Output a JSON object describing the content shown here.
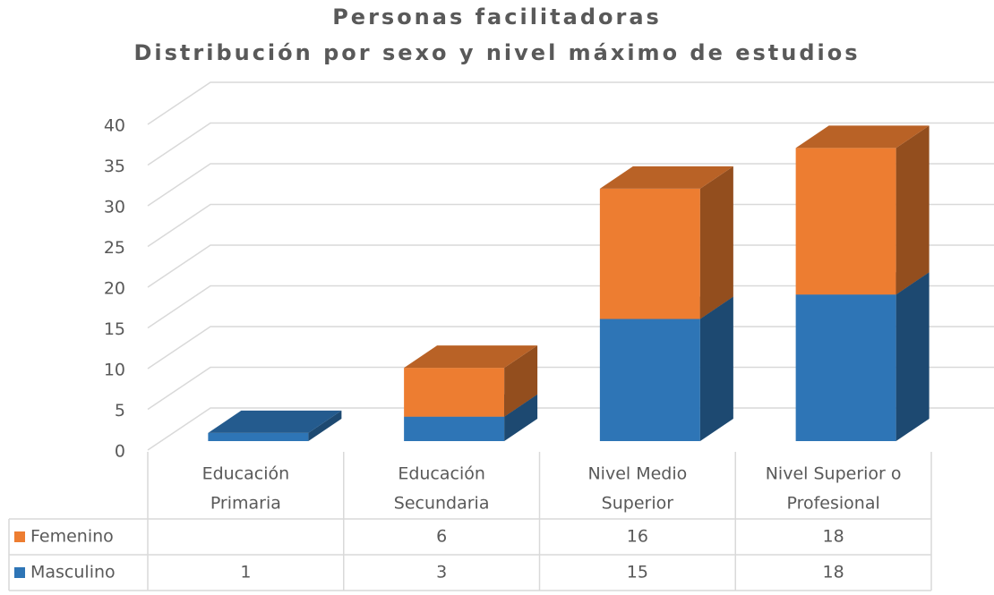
{
  "chart_data": {
    "type": "bar3d_stacked",
    "title": "Personas facilitadoras",
    "subtitle": "Distribución por sexo y nivel máximo de estudios",
    "categories": [
      [
        "Educación",
        "Primaria"
      ],
      [
        "Educación",
        "Secundaria"
      ],
      [
        "Nivel Medio",
        "Superior"
      ],
      [
        "Nivel Superior o",
        "Profesional"
      ]
    ],
    "series": [
      {
        "name": "Femenino",
        "color": "#ed7d31",
        "values": [
          null,
          6,
          16,
          18
        ]
      },
      {
        "name": "Masculino",
        "color": "#2e75b6",
        "values": [
          1,
          3,
          15,
          18
        ]
      }
    ],
    "ylim": [
      0,
      40
    ],
    "yticks": [
      0,
      5,
      10,
      15,
      20,
      25,
      30,
      35,
      40
    ],
    "grid": true
  }
}
